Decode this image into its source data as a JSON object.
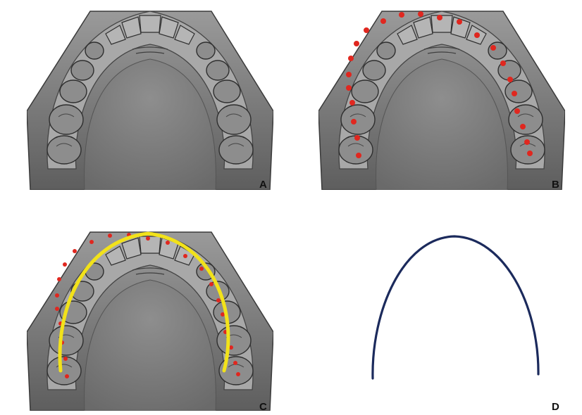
{
  "panels": [
    {
      "label": "A"
    },
    {
      "label": "B"
    },
    {
      "label": "C"
    },
    {
      "label": "D"
    }
  ],
  "colors": {
    "cast_base": "#7b7b7b",
    "cast_light": "#b9b9b9",
    "cast_dark": "#3e3e3e",
    "landmark_dot": "#e0271f",
    "fitted_curve_overlay": "#f2e21a",
    "arch_curve": "#1b2a5c"
  },
  "icons": [
    "dental-cast-image",
    "landmark-dot",
    "arch-curve-line"
  ]
}
